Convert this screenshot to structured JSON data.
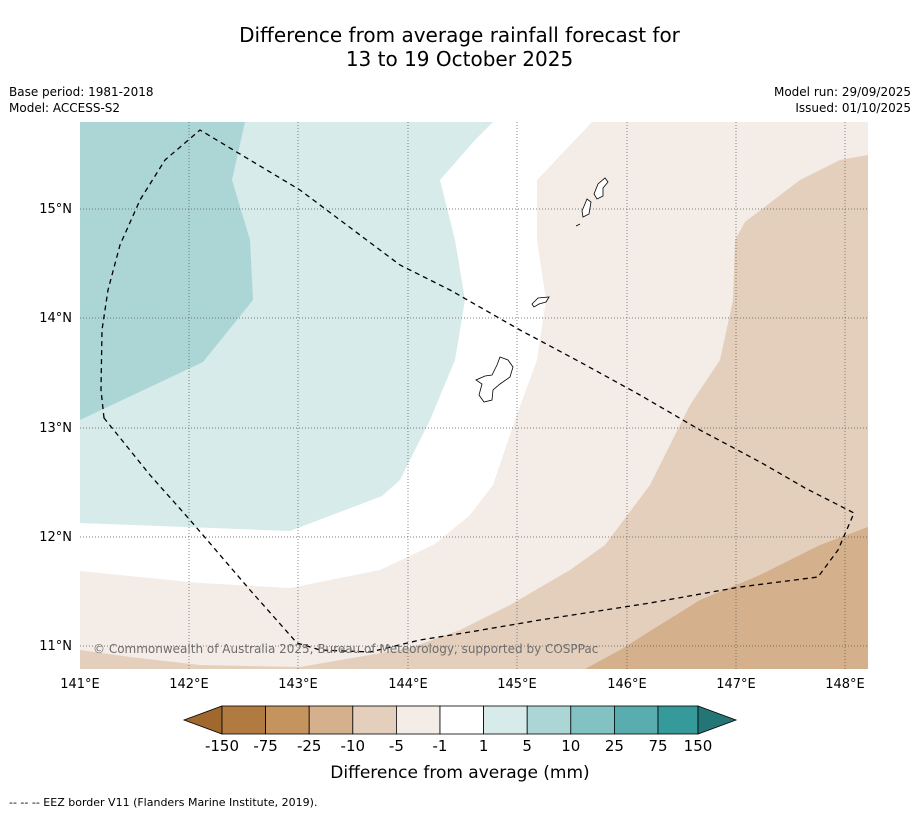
{
  "title": {
    "line1": "Difference from average rainfall forecast for",
    "line2": "13 to 19 October 2025"
  },
  "meta": {
    "base_period": "Base period: 1981-2018",
    "model": "Model: ACCESS-S2",
    "model_run": "Model run: 29/09/2025",
    "issued": "Issued: 01/10/2025"
  },
  "map": {
    "lon_labels": [
      "141°E",
      "142°E",
      "143°E",
      "144°E",
      "145°E",
      "146°E",
      "147°E",
      "148°E"
    ],
    "lat_labels": [
      "15°N",
      "14°N",
      "13°N",
      "12°N",
      "11°N"
    ],
    "copyright": "© Commonwealth of Australia 2025, Bureau of Meteorology, supported by COSPPac"
  },
  "legend": {
    "ticks": [
      "-150",
      "-75",
      "-25",
      "-10",
      "-5",
      "-1",
      "1",
      "5",
      "10",
      "25",
      "75",
      "150"
    ],
    "colors": [
      "#a0672f",
      "#b07a40",
      "#c4935e",
      "#d4b08c",
      "#e4cfbc",
      "#f4ece7",
      "#ffffff",
      "#d6ebea",
      "#acd6d6",
      "#82c2c3",
      "#5aadae",
      "#36999a",
      "#247676"
    ],
    "label": "Difference from average (mm)"
  },
  "footer": "--  --  -- EEZ border V11 (Flanders Marine Institute, 2019)."
}
